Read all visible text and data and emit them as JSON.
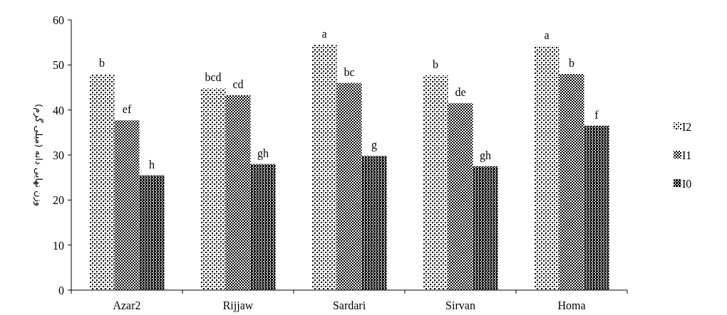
{
  "chart_data": {
    "type": "bar",
    "ylabel": "وزن نهایی دانه (میلی گرم)",
    "categories": [
      "Azar2",
      "Rijjaw",
      "Sardari",
      "Sirvan",
      "Homa"
    ],
    "series": [
      {
        "name": "I2",
        "color": "#000000",
        "values": [
          48,
          44.8,
          54.5,
          47.7,
          54.2
        ],
        "value_labels": [
          "b",
          "bcd",
          "a",
          "b",
          "a"
        ]
      },
      {
        "name": "I1",
        "color": "#000000",
        "values": [
          37.7,
          43.3,
          46,
          41.5,
          48
        ],
        "value_labels": [
          "ef",
          "cd",
          "bc",
          "de",
          "b"
        ]
      },
      {
        "name": "I0",
        "color": "#000000",
        "values": [
          25.5,
          28,
          29.8,
          27.5,
          36.5
        ],
        "value_labels": [
          "h",
          "gh",
          "g",
          "gh",
          "f"
        ]
      }
    ],
    "ylim": [
      0,
      60
    ],
    "yticks": [
      0,
      10,
      20,
      30,
      40,
      50,
      60
    ],
    "legend": "right",
    "grid": false
  }
}
